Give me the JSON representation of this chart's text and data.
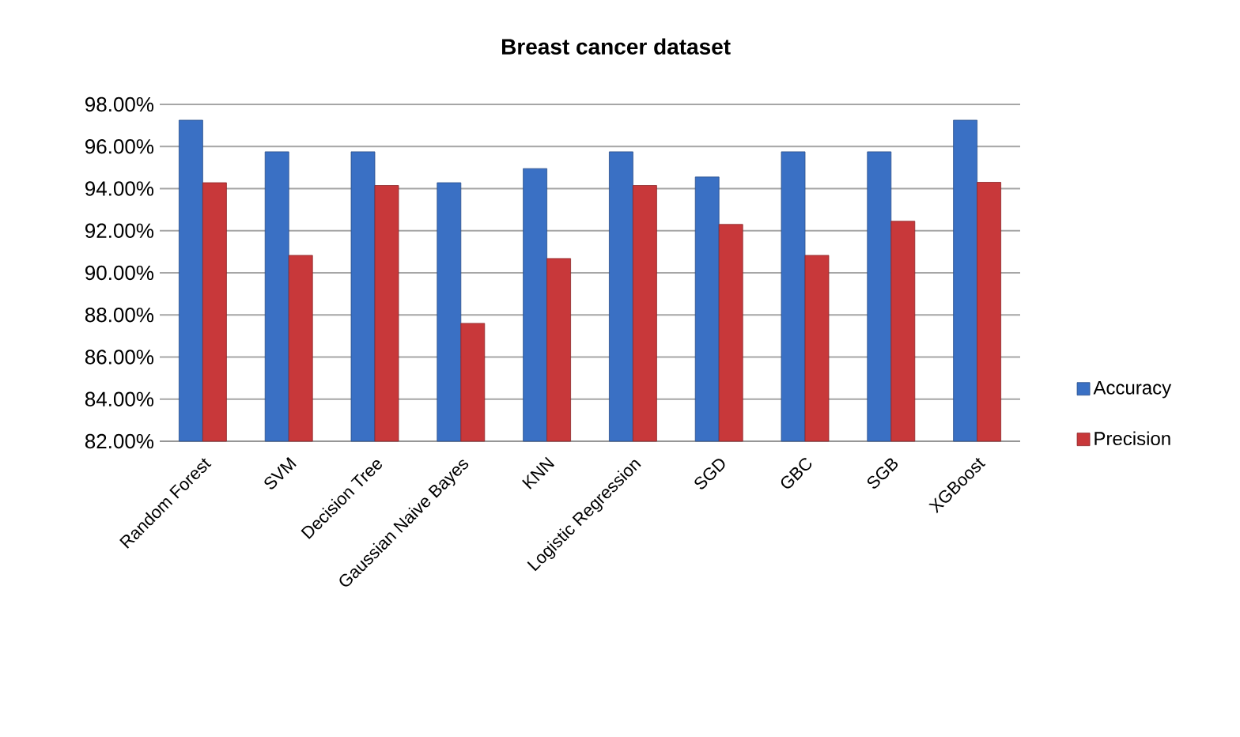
{
  "chart_data": {
    "type": "bar",
    "title": "Breast cancer dataset",
    "categories": [
      "Random Forest",
      "SVM",
      "Decision Tree",
      "Gaussian Naive Bayes",
      "KNN",
      "Logistic Regression",
      "SGD",
      "GBC",
      "SGB",
      "XGBoost"
    ],
    "series": [
      {
        "name": "Accuracy",
        "color": "#3a70c4",
        "values": [
          97.25,
          95.75,
          95.75,
          94.28,
          94.95,
          95.75,
          94.55,
          95.75,
          95.75,
          97.25
        ]
      },
      {
        "name": "Precision",
        "color": "#c8383a",
        "values": [
          94.28,
          90.83,
          94.15,
          87.6,
          90.68,
          94.15,
          92.3,
          90.83,
          92.45,
          94.3
        ]
      }
    ],
    "ylim": [
      82,
      98
    ],
    "yticks": [
      {
        "value": 82,
        "label": "82.00%"
      },
      {
        "value": 84,
        "label": "84.00%"
      },
      {
        "value": 86,
        "label": "86.00%"
      },
      {
        "value": 88,
        "label": "88.00%"
      },
      {
        "value": 90,
        "label": "90.00%"
      },
      {
        "value": 92,
        "label": "92.00%"
      },
      {
        "value": 94,
        "label": "94.00%"
      },
      {
        "value": 96,
        "label": "96.00%"
      },
      {
        "value": 98,
        "label": "98.00%"
      }
    ],
    "grid": "y",
    "legend": "right"
  }
}
